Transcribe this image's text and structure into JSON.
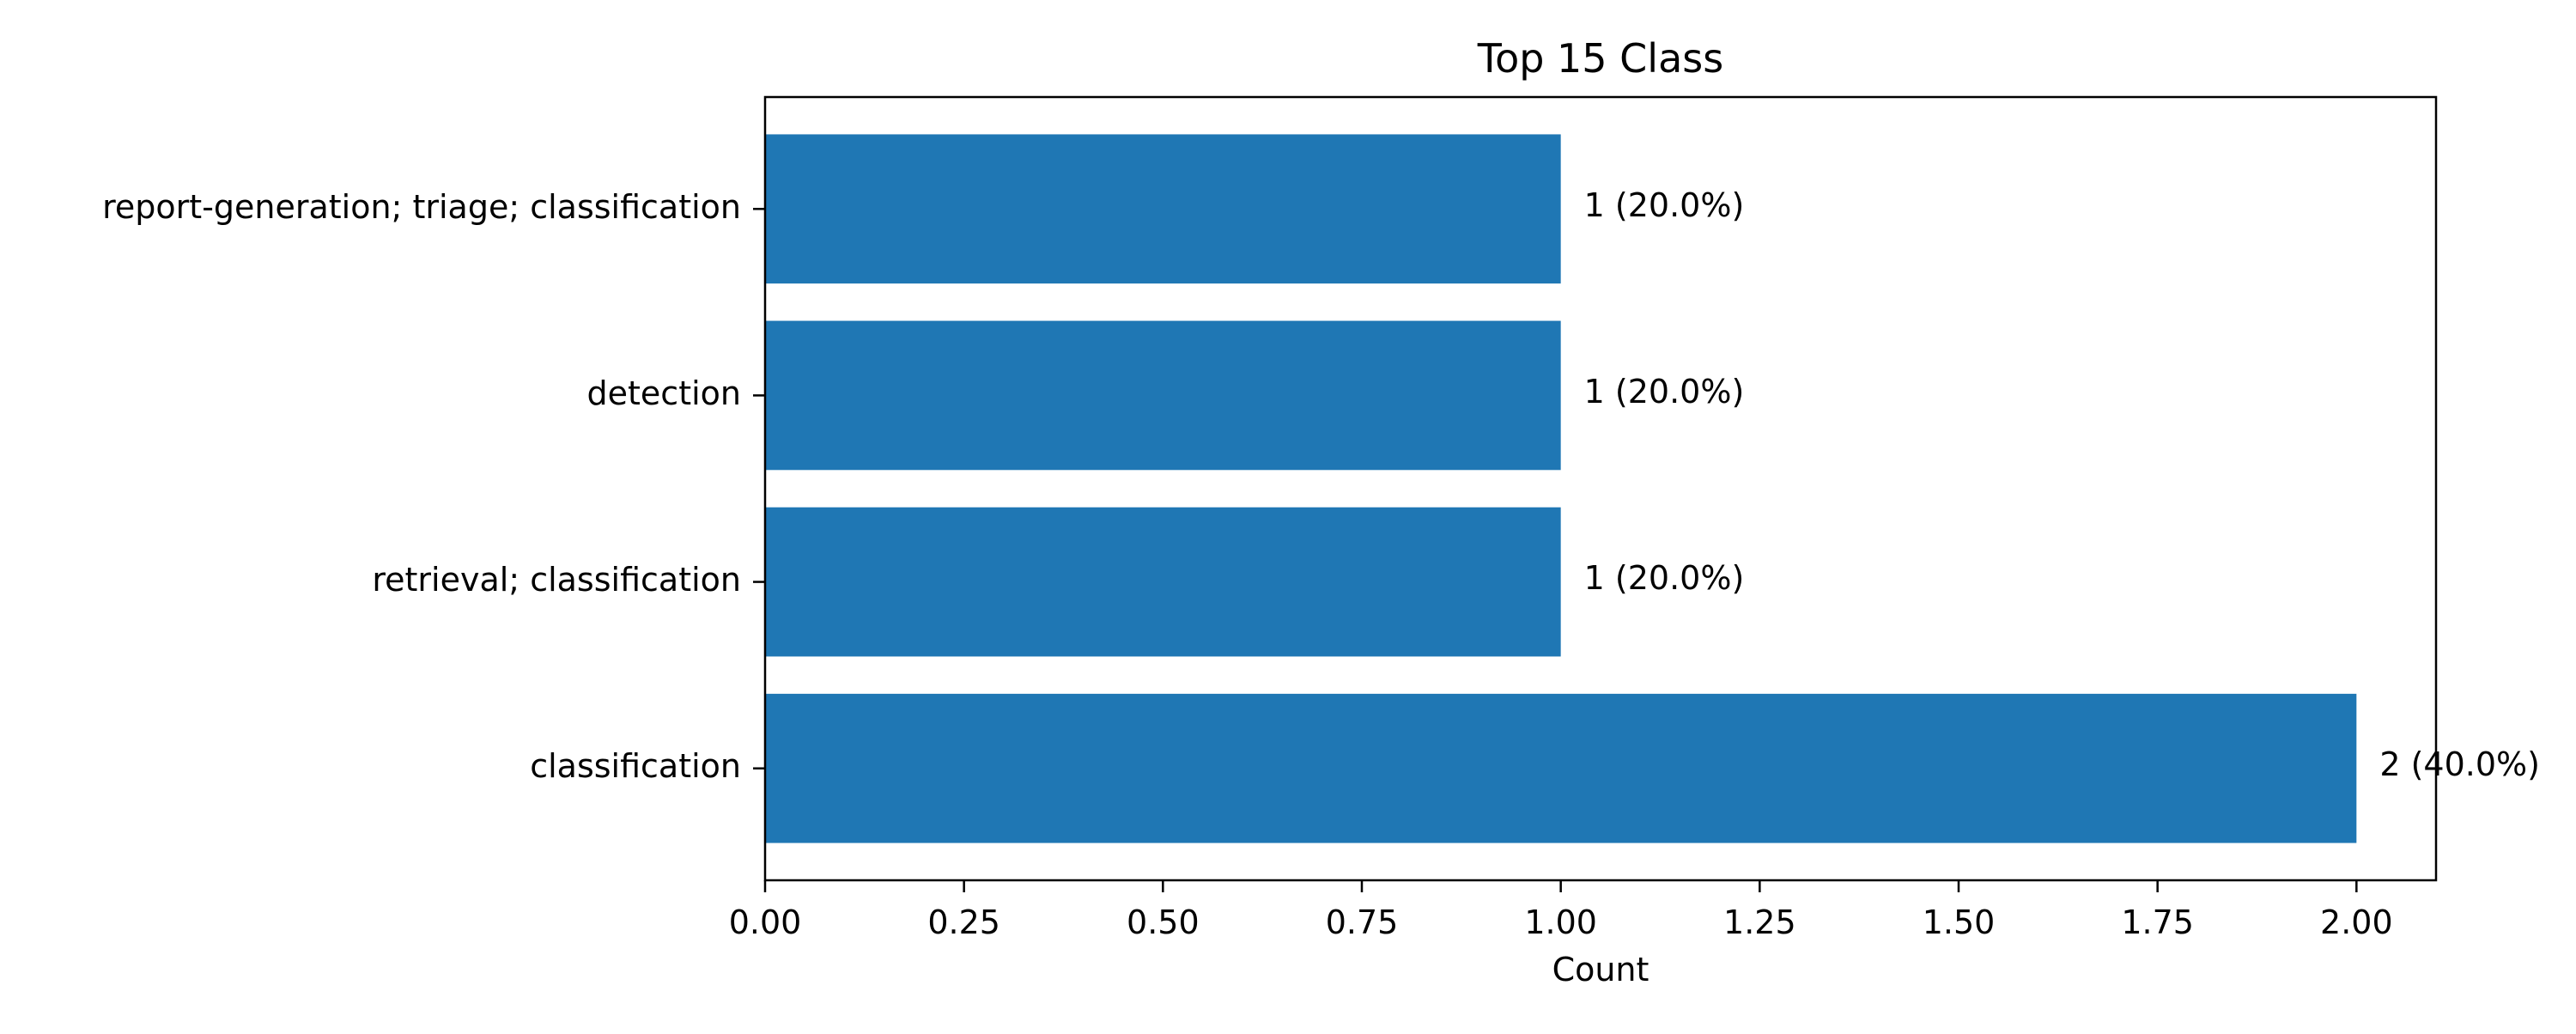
{
  "chart_data": {
    "type": "bar",
    "orientation": "horizontal",
    "title": "Top 15 Class",
    "xlabel": "Count",
    "ylabel": "",
    "categories": [
      "report-generation; triage; classification",
      "detection",
      "retrieval; classification",
      "classification"
    ],
    "values": [
      1,
      1,
      1,
      2
    ],
    "data_labels": [
      "1 (20.0%)",
      "1 (20.0%)",
      "1 (20.0%)",
      "2 (40.0%)"
    ],
    "xlim": [
      0,
      2.1
    ],
    "x_ticks": [
      0,
      0.25,
      0.5,
      0.75,
      1.0,
      1.25,
      1.5,
      1.75,
      2.0
    ],
    "x_tick_labels": [
      "0.00",
      "0.25",
      "0.50",
      "0.75",
      "1.00",
      "1.25",
      "1.50",
      "1.75",
      "2.00"
    ],
    "grid": false,
    "legend": "none",
    "bar_color": "#1f77b4"
  }
}
